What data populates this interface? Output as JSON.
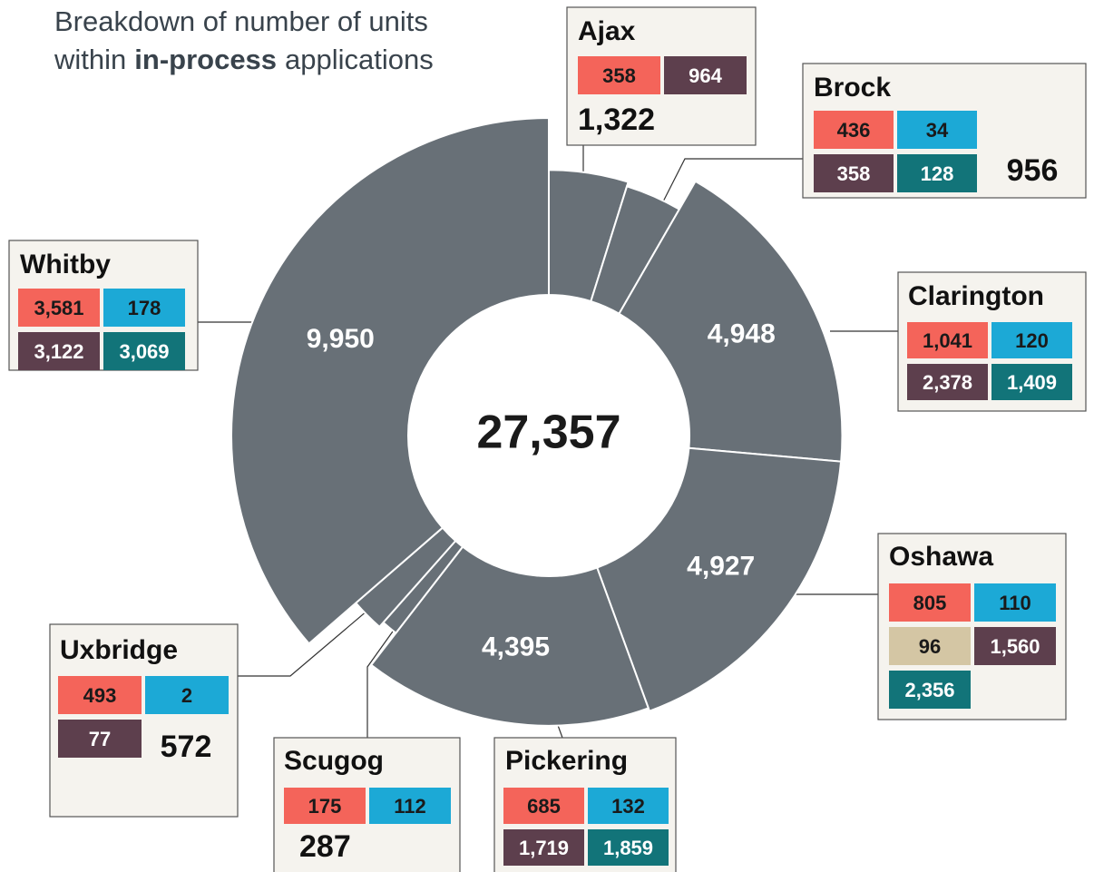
{
  "chart_data": {
    "type": "donut",
    "title": {
      "line1": "Breakdown of number of units",
      "line2_start": "within",
      "line2_bold": "in-process",
      "line2_end": "applications"
    },
    "total": {
      "value": 27357,
      "label": "27,357"
    },
    "segments": [
      {
        "name": "Ajax",
        "value": 1322,
        "value_label": "1,322",
        "color": "#687077",
        "breakdown": {
          "values": [
            358,
            964
          ],
          "value_labels": [
            "358",
            "964"
          ],
          "colors": [
            "#f4645a",
            "#5d3f4d"
          ]
        }
      },
      {
        "name": "Brock",
        "value": 956,
        "value_label": "956",
        "color": "#687077",
        "breakdown": {
          "values": [
            436,
            34,
            358,
            128
          ],
          "value_labels": [
            "436",
            "34",
            "358",
            "128"
          ],
          "colors": [
            "#f4645a",
            "#1ca9d6",
            "#5d3f4d",
            "#127479"
          ]
        }
      },
      {
        "name": "Clarington",
        "value": 4948,
        "value_label": "4,948",
        "color": "#687077",
        "breakdown": {
          "values": [
            1041,
            120,
            2378,
            1409
          ],
          "value_labels": [
            "1,041",
            "120",
            "2,378",
            "1,409"
          ],
          "colors": [
            "#f4645a",
            "#1ca9d6",
            "#5d3f4d",
            "#127479"
          ]
        }
      },
      {
        "name": "Oshawa",
        "value": 4927,
        "value_label": "4,927",
        "color": "#687077",
        "breakdown": {
          "values": [
            805,
            110,
            96,
            1560,
            2356
          ],
          "value_labels": [
            "805",
            "110",
            "96",
            "1,560",
            "2,356"
          ],
          "colors": [
            "#f4645a",
            "#1ca9d6",
            "#d4c6a4",
            "#5d3f4d",
            "#127479"
          ]
        }
      },
      {
        "name": "Pickering",
        "value": 4395,
        "value_label": "4,395",
        "color": "#687077",
        "breakdown": {
          "values": [
            685,
            132,
            1719,
            1859
          ],
          "value_labels": [
            "685",
            "132",
            "1,719",
            "1,859"
          ],
          "colors": [
            "#f4645a",
            "#1ca9d6",
            "#5d3f4d",
            "#127479"
          ]
        }
      },
      {
        "name": "Scugog",
        "value": 287,
        "value_label": "287",
        "color": "#687077",
        "breakdown": {
          "values": [
            175,
            112
          ],
          "value_labels": [
            "175",
            "112"
          ],
          "colors": [
            "#f4645a",
            "#1ca9d6"
          ]
        }
      },
      {
        "name": "Uxbridge",
        "value": 572,
        "value_label": "572",
        "color": "#687077",
        "breakdown": {
          "values": [
            493,
            2,
            77
          ],
          "value_labels": [
            "493",
            "2",
            "77"
          ],
          "colors": [
            "#f4645a",
            "#1ca9d6",
            "#5d3f4d"
          ]
        }
      },
      {
        "name": "Whitby",
        "value": 9950,
        "value_label": "9,950",
        "color": "#687077",
        "breakdown": {
          "values": [
            3581,
            178,
            3122,
            3069
          ],
          "value_labels": [
            "3,581",
            "178",
            "3,122",
            "3,069"
          ],
          "colors": [
            "#f4645a",
            "#1ca9d6",
            "#5d3f4d",
            "#127479"
          ]
        }
      }
    ]
  }
}
